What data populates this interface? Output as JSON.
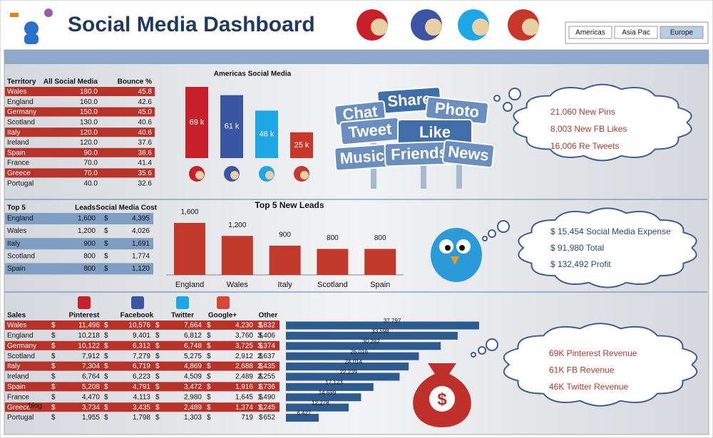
{
  "header": {
    "title": "Social Media Dashboard",
    "regions": [
      "Americas",
      "Asia Pac",
      "Europe"
    ]
  },
  "territory_table": {
    "columns": [
      "Territory",
      "All Social Media",
      "Bounce %"
    ],
    "rows": [
      [
        "Wales",
        "180.0",
        "45.8"
      ],
      [
        "England",
        "160.0",
        "42.6"
      ],
      [
        "Germany",
        "150.0",
        "45.0"
      ],
      [
        "Scotland",
        "130.0",
        "40.6"
      ],
      [
        "Italy",
        "120.0",
        "40.6"
      ],
      [
        "Ireland",
        "120.0",
        "37.6"
      ],
      [
        "Spain",
        "90.0",
        "38.6"
      ],
      [
        "France",
        "70.0",
        "41.4"
      ],
      [
        "Greece",
        "70.0",
        "35.6"
      ],
      [
        "Portugal",
        "40.0",
        "32.6"
      ]
    ]
  },
  "americas_chart": {
    "type": "bar",
    "title": "Americas Social Media",
    "values": [
      69,
      61,
      46,
      25
    ],
    "value_labels": [
      "69 k",
      "61 k",
      "46 k",
      "25 k"
    ],
    "colors": [
      "#c8202a",
      "#3a56a2",
      "#1ea7e6",
      "#c8382a"
    ]
  },
  "signs": [
    "Share",
    "Photo",
    "Chat",
    "Tweet",
    "Like",
    "Music",
    "Friends",
    "News"
  ],
  "pins_cloud": [
    "21,060 New Pins",
    "8,003 New FB Likes",
    "16,006 Re Tweets"
  ],
  "top5_table": {
    "columns": [
      "Top 5",
      "Leads",
      "Social Media Cost"
    ],
    "rows": [
      [
        "England",
        "1,600",
        "$",
        "4,395"
      ],
      [
        "Wales",
        "1,200",
        "$",
        "4,026"
      ],
      [
        "Italy",
        "900",
        "$",
        "1,691"
      ],
      [
        "Scotland",
        "800",
        "$",
        "1,774"
      ],
      [
        "Spain",
        "800",
        "$",
        "1,120"
      ]
    ]
  },
  "leads_chart": {
    "type": "bar",
    "title": "Top 5 New Leads",
    "categories": [
      "England",
      "Wales",
      "Italy",
      "Scotland",
      "Spain"
    ],
    "values": [
      1600,
      1200,
      900,
      800,
      800
    ],
    "value_labels": [
      "1,600",
      "1,200",
      "900",
      "800",
      "800"
    ],
    "color": "#c0392b"
  },
  "expense_cloud": [
    "$ 15,454 Social Media Expense",
    "$ 91,980 Total",
    "$ 132,492 Profit"
  ],
  "sales_table": {
    "columns": [
      "Sales",
      "Pinterest",
      "Facebook",
      "Twitter",
      "Google+",
      "Other"
    ],
    "rows": [
      [
        "Wales",
        "$",
        "11,496",
        "$",
        "10,576",
        "$",
        "7,664",
        "$",
        "4,230",
        "$",
        "3,832"
      ],
      [
        "England",
        "$",
        "10,218",
        "$",
        "9,401",
        "$",
        "6,812",
        "$",
        "3,760",
        "$",
        "3,406"
      ],
      [
        "Germany",
        "$",
        "10,122",
        "$",
        "6,312",
        "$",
        "6,748",
        "$",
        "3,725",
        "$",
        "3,374"
      ],
      [
        "Scotland",
        "$",
        "7,912",
        "$",
        "7,279",
        "$",
        "5,275",
        "$",
        "2,912",
        "$",
        "2,637"
      ],
      [
        "Italy",
        "$",
        "7,304",
        "$",
        "6,719",
        "$",
        "4,869",
        "$",
        "2,688",
        "$",
        "2,435"
      ],
      [
        "Ireland",
        "$",
        "6,764",
        "$",
        "6,223",
        "$",
        "4,509",
        "$",
        "2,489",
        "$",
        "2,255"
      ],
      [
        "Spain",
        "$",
        "5,208",
        "$",
        "4,791",
        "$",
        "3,472",
        "$",
        "1,916",
        "$",
        "1,736"
      ],
      [
        "France",
        "$",
        "4,470",
        "$",
        "4,113",
        "$",
        "2,980",
        "$",
        "1,645",
        "$",
        "1,490"
      ],
      [
        "Greece",
        "$",
        "3,734",
        "$",
        "3,435",
        "$",
        "2,489",
        "$",
        "1,374",
        "$",
        "1,245"
      ],
      [
        "Portugal",
        "$",
        "1,955",
        "$",
        "1,798",
        "$",
        "1,303",
        "$",
        "719",
        "$",
        "652"
      ]
    ]
  },
  "blog_label": "blog",
  "sales_chart": {
    "type": "hbar",
    "values": [
      37797,
      33598,
      30282,
      26016,
      24014,
      22239,
      17123,
      14699,
      12278,
      6427
    ],
    "value_labels": [
      "37,797",
      "33,598",
      "30,282",
      "26,016",
      "24,014",
      "22,239",
      "17,123",
      "14,699",
      "12,278",
      "6,427"
    ],
    "color": "#2e5b8f"
  },
  "money_symbol": "$",
  "revenue_cloud": [
    "69K Pinterest Revenue",
    "61K FB Revenue",
    "46K Twitter Revenue"
  ]
}
